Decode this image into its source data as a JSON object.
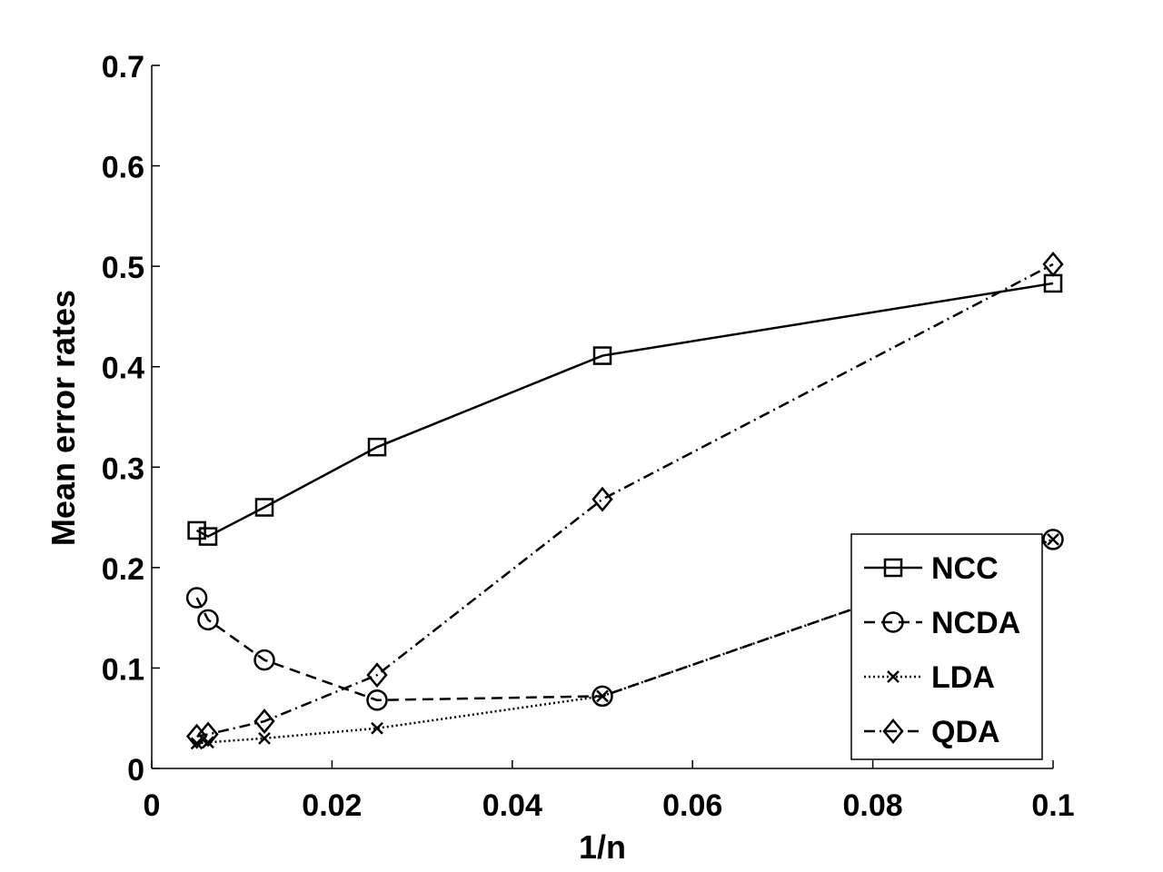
{
  "chart_data": {
    "type": "line",
    "title": "",
    "xlabel": "1/n",
    "ylabel": "Mean error rates",
    "xlim": [
      0,
      0.1
    ],
    "ylim": [
      0,
      0.7
    ],
    "xticks": [
      0,
      0.02,
      0.04,
      0.06,
      0.08,
      0.1
    ],
    "xtick_labels": [
      "0",
      "0.02",
      "0.04",
      "0.06",
      "0.08",
      "0.1"
    ],
    "yticks": [
      0,
      0.1,
      0.2,
      0.3,
      0.4,
      0.5,
      0.6,
      0.7
    ],
    "ytick_labels": [
      "0",
      "0.1",
      "0.2",
      "0.3",
      "0.4",
      "0.5",
      "0.6",
      "0.7"
    ],
    "x": [
      0.005,
      0.00625,
      0.0125,
      0.025,
      0.05,
      0.1
    ],
    "grid": false,
    "legend_position": "bottom-right",
    "series": [
      {
        "name": "NCC",
        "marker": "square",
        "line": "solid",
        "values": [
          0.237,
          0.231,
          0.26,
          0.32,
          0.411,
          0.483
        ]
      },
      {
        "name": "NCDA",
        "marker": "circle",
        "line": "dashed",
        "values": [
          0.17,
          0.148,
          0.108,
          0.068,
          0.072,
          0.228
        ]
      },
      {
        "name": "LDA",
        "marker": "x",
        "line": "dotted",
        "values": [
          0.025,
          0.026,
          0.03,
          0.04,
          0.072,
          0.228
        ]
      },
      {
        "name": "QDA",
        "marker": "diamond",
        "line": "dash-dot",
        "values": [
          0.032,
          0.034,
          0.047,
          0.093,
          0.268,
          0.502
        ]
      }
    ]
  }
}
